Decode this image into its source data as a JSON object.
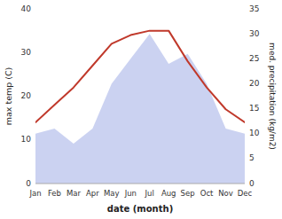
{
  "chart_data": {
    "type": "line",
    "xlabel": "date (month)",
    "ylabel": "max temp (C)",
    "y2label": "med. precipitation (kg/m2)",
    "categories": [
      "Jan",
      "Feb",
      "Mar",
      "Apr",
      "May",
      "Jun",
      "Jul",
      "Aug",
      "Sep",
      "Oct",
      "Nov",
      "Dec"
    ],
    "series": [
      {
        "type": "area",
        "axis": "y2",
        "color": "#c5cdf0",
        "values": [
          10,
          11,
          8,
          11,
          20,
          25,
          30,
          24,
          26,
          20,
          11,
          10
        ]
      },
      {
        "type": "line",
        "color": "#c0392b",
        "values": [
          14,
          18,
          22,
          27,
          32,
          34,
          35,
          35,
          28,
          22,
          17,
          14
        ]
      }
    ],
    "ylim": [
      0,
      40
    ],
    "yticks": [
      0,
      10,
      20,
      30,
      40
    ],
    "y2lim": [
      0,
      35
    ],
    "y2ticks": [
      0,
      5,
      10,
      15,
      20,
      25,
      30,
      35
    ],
    "grid": false
  }
}
